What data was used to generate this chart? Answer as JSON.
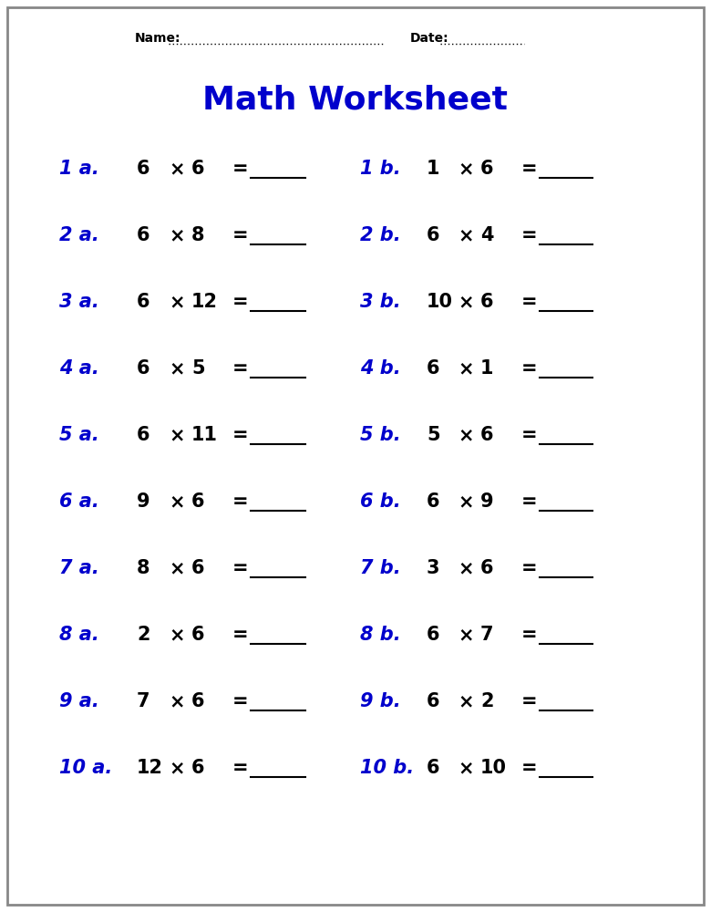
{
  "title": "Math Worksheet",
  "title_color": "#0000CC",
  "title_fontsize": 26,
  "name_label": "Name:",
  "date_label": "Date:",
  "header_fontsize": 10,
  "bg_color": "#ffffff",
  "border_color": "#888888",
  "label_color": "#0000CC",
  "equation_color": "#000000",
  "label_fontsize": 15,
  "equation_fontsize": 15,
  "rows": [
    {
      "label_a": "1 a.",
      "num_a": "6",
      "mul_a": "6",
      "label_b": "1 b.",
      "num_b": "1",
      "mul_b": "6"
    },
    {
      "label_a": "2 a.",
      "num_a": "6",
      "mul_a": "8",
      "label_b": "2 b.",
      "num_b": "6",
      "mul_b": "4"
    },
    {
      "label_a": "3 a.",
      "num_a": "6",
      "mul_a": "12",
      "label_b": "3 b.",
      "num_b": "10",
      "mul_b": "6"
    },
    {
      "label_a": "4 a.",
      "num_a": "6",
      "mul_a": "5",
      "label_b": "4 b.",
      "num_b": "6",
      "mul_b": "1"
    },
    {
      "label_a": "5 a.",
      "num_a": "6",
      "mul_a": "11",
      "label_b": "5 b.",
      "num_b": "5",
      "mul_b": "6"
    },
    {
      "label_a": "6 a.",
      "num_a": "9",
      "mul_a": "6",
      "label_b": "6 b.",
      "num_b": "6",
      "mul_b": "9"
    },
    {
      "label_a": "7 a.",
      "num_a": "8",
      "mul_a": "6",
      "label_b": "7 b.",
      "num_b": "3",
      "mul_b": "6"
    },
    {
      "label_a": "8 a.",
      "num_a": "2",
      "mul_a": "6",
      "label_b": "8 b.",
      "num_b": "6",
      "mul_b": "7"
    },
    {
      "label_a": "9 a.",
      "num_a": "7",
      "mul_a": "6",
      "label_b": "9 b.",
      "num_b": "6",
      "mul_b": "2"
    },
    {
      "label_a": "10 a.",
      "num_a": "12",
      "mul_a": "6",
      "label_b": "10 b.",
      "num_b": "6",
      "mul_b": "10"
    }
  ]
}
